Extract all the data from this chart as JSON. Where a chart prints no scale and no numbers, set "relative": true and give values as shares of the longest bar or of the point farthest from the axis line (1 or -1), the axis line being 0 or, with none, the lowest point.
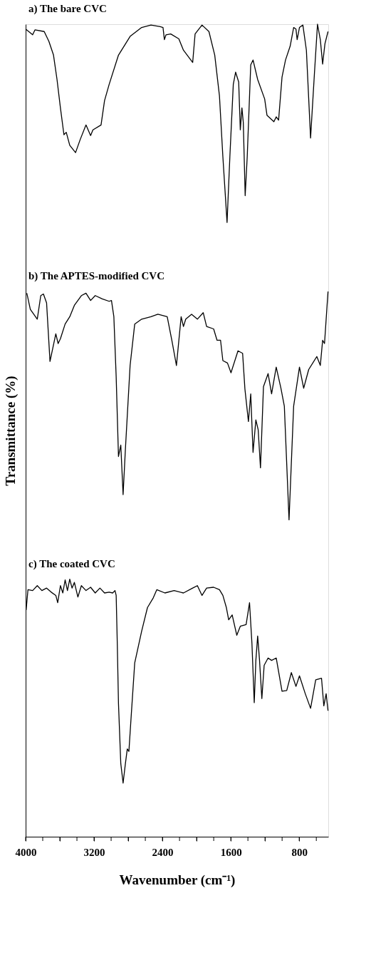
{
  "chart_data": {
    "type": "line",
    "relative": true,
    "xlabel": "Wavenumber (cm⁻¹)",
    "ylabel": "Transmittance (%)",
    "xlim": [
      4000,
      460
    ],
    "xticks": [
      4000,
      {
        "value": 3800,
        "label": null
      },
      {
        "value": 3600,
        "label": null
      },
      {
        "value": 3400,
        "label": null
      },
      3200,
      {
        "value": 3000,
        "label": null
      },
      {
        "value": 2800,
        "label": null
      },
      {
        "value": 2600,
        "label": null
      },
      2400,
      {
        "value": 2200,
        "label": null
      },
      {
        "value": 2000,
        "label": null
      },
      {
        "value": 1800,
        "label": null
      },
      1600,
      {
        "value": 1400,
        "label": null
      },
      {
        "value": 1200,
        "label": null
      },
      {
        "value": 1000,
        "label": null
      },
      800,
      {
        "value": 600,
        "label": null
      }
    ],
    "grid": false,
    "legend": false,
    "line_style": "solid",
    "marker": "none",
    "series": [
      {
        "name": "a) The bare CVC",
        "color": "#000000",
        "x": [
          4000,
          3918,
          3891,
          3783,
          3728,
          3674,
          3633,
          3593,
          3552,
          3525,
          3484,
          3416,
          3362,
          3294,
          3240,
          3213,
          3118,
          3077,
          3023,
          2914,
          2778,
          2643,
          2534,
          2426,
          2393,
          2377,
          2358,
          2303,
          2208,
          2154,
          2046,
          2018,
          1937,
          1856,
          1788,
          1733,
          1693,
          1644,
          1611,
          1571,
          1544,
          1508,
          1489,
          1470,
          1454,
          1432,
          1408,
          1367,
          1340,
          1286,
          1204,
          1177,
          1096,
          1069,
          1041,
          1001,
          960,
          906,
          865,
          838,
          824,
          797,
          757,
          716,
          667,
          621,
          586,
          553,
          526,
          499,
          463
        ],
        "values": [
          0.994,
          0.987,
          0.993,
          0.991,
          0.979,
          0.962,
          0.932,
          0.897,
          0.864,
          0.867,
          0.851,
          0.842,
          0.858,
          0.876,
          0.863,
          0.87,
          0.876,
          0.906,
          0.926,
          0.962,
          0.985,
          0.996,
          0.999,
          0.997,
          0.996,
          0.981,
          0.987,
          0.988,
          0.982,
          0.968,
          0.953,
          0.988,
          0.999,
          0.991,
          0.962,
          0.912,
          0.837,
          0.756,
          0.837,
          0.926,
          0.941,
          0.929,
          0.87,
          0.897,
          0.879,
          0.789,
          0.837,
          0.95,
          0.956,
          0.932,
          0.908,
          0.888,
          0.88,
          0.886,
          0.882,
          0.935,
          0.956,
          0.973,
          0.996,
          0.994,
          0.981,
          0.996,
          0.999,
          0.968,
          0.86,
          0.941,
          1.0,
          0.981,
          0.951,
          0.976,
          0.991
        ]
      },
      {
        "name": "b) The APTES-modified CVC",
        "color": "#000000",
        "x": [
          3986,
          3945,
          3905,
          3864,
          3823,
          3792,
          3755,
          3715,
          3647,
          3620,
          3593,
          3538,
          3484,
          3430,
          3348,
          3294,
          3240,
          3186,
          3104,
          3023,
          2996,
          2968,
          2941,
          2914,
          2887,
          2860,
          2833,
          2778,
          2724,
          2643,
          2534,
          2453,
          2344,
          2290,
          2236,
          2181,
          2154,
          2127,
          2059,
          1991,
          1923,
          1883,
          1801,
          1761,
          1720,
          1693,
          1639,
          1598,
          1516,
          1462,
          1435,
          1394,
          1367,
          1340,
          1307,
          1280,
          1253,
          1218,
          1164,
          1123,
          1069,
          1014,
          974,
          919,
          865,
          797,
          748,
          689,
          594,
          553,
          526,
          504,
          463
        ],
        "values": [
          0.669,
          0.649,
          0.643,
          0.637,
          0.666,
          0.668,
          0.657,
          0.585,
          0.619,
          0.607,
          0.613,
          0.631,
          0.64,
          0.654,
          0.666,
          0.669,
          0.66,
          0.666,
          0.662,
          0.659,
          0.66,
          0.64,
          0.566,
          0.468,
          0.482,
          0.421,
          0.477,
          0.58,
          0.631,
          0.637,
          0.64,
          0.643,
          0.64,
          0.611,
          0.58,
          0.64,
          0.628,
          0.637,
          0.643,
          0.637,
          0.645,
          0.628,
          0.625,
          0.611,
          0.611,
          0.586,
          0.583,
          0.571,
          0.598,
          0.595,
          0.551,
          0.511,
          0.545,
          0.473,
          0.513,
          0.501,
          0.454,
          0.554,
          0.57,
          0.545,
          0.578,
          0.552,
          0.53,
          0.39,
          0.53,
          0.578,
          0.552,
          0.575,
          0.591,
          0.58,
          0.611,
          0.607,
          0.671
        ]
      },
      {
        "name": "c) The coated CVC",
        "color": "#000000",
        "x": [
          3994,
          3973,
          3918,
          3864,
          3810,
          3755,
          3701,
          3647,
          3625,
          3593,
          3565,
          3538,
          3511,
          3484,
          3457,
          3430,
          3389,
          3348,
          3294,
          3240,
          3186,
          3131,
          3077,
          3023,
          2982,
          2955,
          2941,
          2928,
          2914,
          2887,
          2860,
          2833,
          2811,
          2792,
          2765,
          2724,
          2643,
          2575,
          2507,
          2466,
          2371,
          2263,
          2154,
          2046,
          1991,
          1937,
          1883,
          1801,
          1733,
          1693,
          1652,
          1625,
          1584,
          1530,
          1489,
          1421,
          1381,
          1353,
          1326,
          1307,
          1286,
          1264,
          1237,
          1210,
          1164,
          1123,
          1069,
          1001,
          946,
          892,
          838,
          797,
          729,
          667,
          607,
          539,
          512,
          485,
          463
        ],
        "values": [
          0.279,
          0.304,
          0.303,
          0.309,
          0.303,
          0.306,
          0.301,
          0.297,
          0.288,
          0.309,
          0.3,
          0.316,
          0.303,
          0.317,
          0.306,
          0.313,
          0.295,
          0.309,
          0.303,
          0.307,
          0.3,
          0.306,
          0.3,
          0.301,
          0.3,
          0.303,
          0.297,
          0.238,
          0.164,
          0.09,
          0.066,
          0.09,
          0.108,
          0.105,
          0.149,
          0.214,
          0.253,
          0.282,
          0.294,
          0.304,
          0.3,
          0.303,
          0.3,
          0.306,
          0.309,
          0.297,
          0.306,
          0.307,
          0.304,
          0.297,
          0.282,
          0.267,
          0.273,
          0.248,
          0.259,
          0.261,
          0.288,
          0.238,
          0.165,
          0.217,
          0.247,
          0.217,
          0.17,
          0.211,
          0.22,
          0.217,
          0.22,
          0.179,
          0.18,
          0.202,
          0.185,
          0.198,
          0.176,
          0.158,
          0.193,
          0.195,
          0.161,
          0.176,
          0.155
        ]
      }
    ]
  }
}
